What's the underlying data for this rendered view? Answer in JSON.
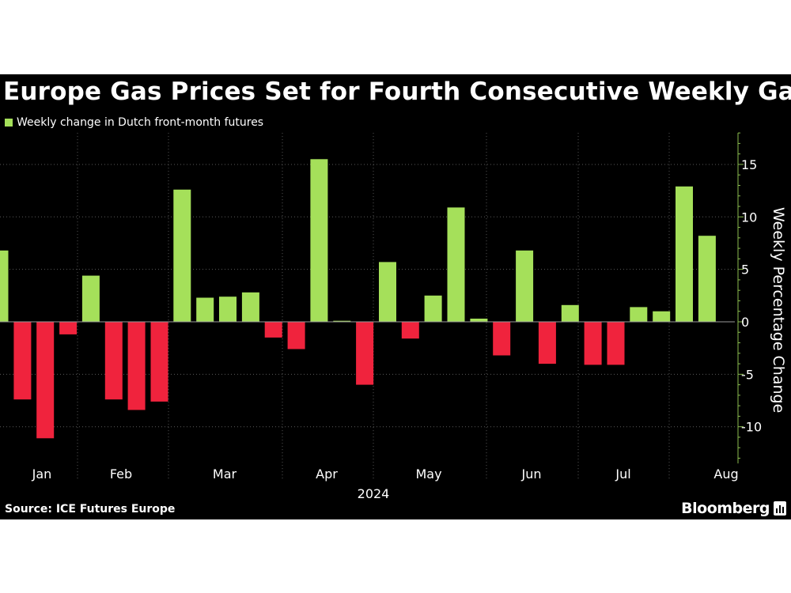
{
  "title": "Europe Gas Prices Set for Fourth Consecutive Weekly Gain",
  "source": "Source: ICE Futures Europe",
  "brand": "Bloomberg",
  "colors": {
    "background": "#000000",
    "positive": "#a5e05a",
    "negative": "#f0233d",
    "axis": "#8bbd4f",
    "grid": "#5a5a5a",
    "text": "#ffffff"
  },
  "chart_data": {
    "type": "bar",
    "title": "Europe Gas Prices Set for Fourth Consecutive Weekly Gain",
    "legend": "Weekly change in Dutch front-month futures",
    "legend_position": "top-left",
    "ylabel": "Weekly Percentage Change",
    "xlabel": "2024",
    "ylim": [
      -13.5,
      18
    ],
    "yticks": [
      15,
      10,
      5,
      0,
      -5,
      -10
    ],
    "ytick_labels": [
      "15",
      "10",
      "5",
      "0",
      "-5",
      "-10"
    ],
    "months": [
      "Jan",
      "Feb",
      "Mar",
      "Apr",
      "May",
      "Jun",
      "Jul",
      "Aug"
    ],
    "grid": true,
    "values": [
      6.8,
      -7.4,
      -11.1,
      -1.2,
      4.4,
      -7.4,
      -8.4,
      -7.6,
      12.6,
      2.3,
      2.4,
      2.8,
      -1.5,
      -2.6,
      15.5,
      0.1,
      -6.0,
      5.7,
      -1.6,
      2.5,
      10.9,
      0.3,
      -3.2,
      6.8,
      -4.0,
      1.6,
      -4.1,
      -4.1,
      1.4,
      1.0,
      12.9,
      8.2
    ]
  }
}
